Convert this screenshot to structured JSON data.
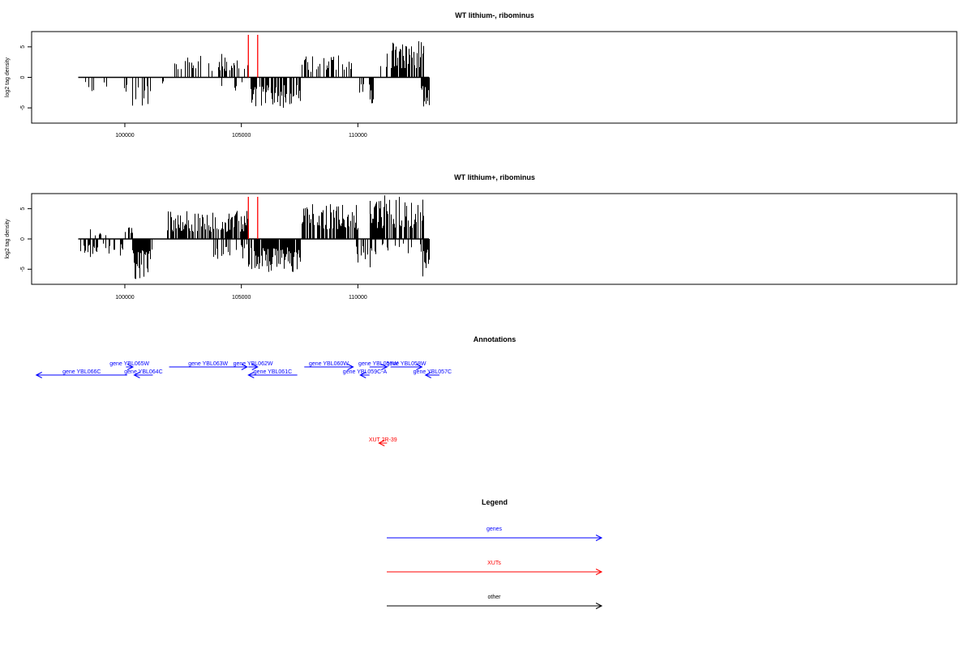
{
  "chart_data": [
    {
      "type": "bar",
      "title": "WT lithium-, ribominus",
      "ylabel": "log2 tag density",
      "xlim": [
        96000,
        135700
      ],
      "ylim": [
        -7.5,
        7.5
      ],
      "x_ticks": [
        100000,
        105000,
        110000
      ],
      "y_ticks": [
        -5,
        0,
        5
      ],
      "marker_lines_x": [
        105300,
        105700
      ],
      "marker_color": "#ff0000",
      "segments": [
        {
          "start": 98300,
          "end": 99200,
          "density": 0.25,
          "sign": -1,
          "amp": 3.0
        },
        {
          "start": 99950,
          "end": 100250,
          "density": 0.35,
          "sign": -1,
          "amp": 3.0
        },
        {
          "start": 100300,
          "end": 101150,
          "density": 0.45,
          "sign": -1,
          "amp": 5.0
        },
        {
          "start": 101600,
          "end": 101650,
          "density": 1.0,
          "sign": -1,
          "amp": 1.2
        },
        {
          "start": 101900,
          "end": 103900,
          "density": 0.35,
          "sign": 1,
          "amp": 3.6
        },
        {
          "start": 103900,
          "end": 105300,
          "density": 0.35,
          "sign": 1,
          "amp": 4.2
        },
        {
          "start": 104100,
          "end": 105200,
          "density": 0.15,
          "sign": -1,
          "amp": 2.5
        },
        {
          "start": 105350,
          "end": 107500,
          "density": 0.65,
          "sign": -1,
          "amp": 5.0
        },
        {
          "start": 107600,
          "end": 110000,
          "density": 0.4,
          "sign": 1,
          "amp": 3.6
        },
        {
          "start": 110050,
          "end": 110650,
          "density": 0.5,
          "sign": -1,
          "amp": 4.3
        },
        {
          "start": 110900,
          "end": 111400,
          "density": 0.25,
          "sign": 1,
          "amp": 4.5
        },
        {
          "start": 111400,
          "end": 112800,
          "density": 0.85,
          "sign": 1,
          "amp": 6.0
        },
        {
          "start": 112700,
          "end": 113050,
          "density": 0.9,
          "sign": -1,
          "amp": 5.5
        }
      ]
    },
    {
      "type": "bar",
      "title": "WT lithium+, ribominus",
      "ylabel": "log2 tag density",
      "xlim": [
        96000,
        135700
      ],
      "ylim": [
        -7.5,
        7.5
      ],
      "x_ticks": [
        100000,
        105000,
        110000
      ],
      "y_ticks": [
        -5,
        0,
        5
      ],
      "marker_lines_x": [
        105300,
        105700
      ],
      "marker_color": "#ff0000",
      "segments": [
        {
          "start": 98050,
          "end": 99900,
          "density": 0.45,
          "sign": -1,
          "amp": 3.0
        },
        {
          "start": 98200,
          "end": 99700,
          "density": 0.2,
          "sign": 1,
          "amp": 2.2
        },
        {
          "start": 99900,
          "end": 100300,
          "density": 0.45,
          "sign": 1,
          "amp": 2.5
        },
        {
          "start": 100300,
          "end": 101150,
          "density": 0.95,
          "sign": -1,
          "amp": 7.0
        },
        {
          "start": 101800,
          "end": 105300,
          "density": 0.75,
          "sign": 1,
          "amp": 4.7
        },
        {
          "start": 103800,
          "end": 105300,
          "density": 0.35,
          "sign": -1,
          "amp": 3.5
        },
        {
          "start": 105300,
          "end": 107500,
          "density": 0.9,
          "sign": -1,
          "amp": 5.5
        },
        {
          "start": 107600,
          "end": 110000,
          "density": 0.75,
          "sign": 1,
          "amp": 5.8
        },
        {
          "start": 109800,
          "end": 110500,
          "density": 0.5,
          "sign": -1,
          "amp": 4.8
        },
        {
          "start": 110500,
          "end": 112800,
          "density": 0.8,
          "sign": 1,
          "amp": 7.2
        },
        {
          "start": 110500,
          "end": 112800,
          "density": 0.3,
          "sign": -1,
          "amp": 3.0
        },
        {
          "start": 112700,
          "end": 113050,
          "density": 0.9,
          "sign": -1,
          "amp": 7.0
        }
      ]
    }
  ],
  "annotations": {
    "title": "Annotations",
    "items": [
      {
        "label": "gene YBL066C",
        "start": 96200,
        "end": 100100,
        "strand": "-",
        "row": 2,
        "type": "genes"
      },
      {
        "label": "gene YBL065W",
        "start": 100050,
        "end": 100350,
        "strand": "+",
        "row": 1,
        "type": "genes"
      },
      {
        "label": "gene YBL064C",
        "start": 100400,
        "end": 101200,
        "strand": "-",
        "row": 2,
        "type": "genes"
      },
      {
        "label": "gene YBL063W",
        "start": 101900,
        "end": 105250,
        "strand": "+",
        "row": 1,
        "type": "genes"
      },
      {
        "label": "gene YBL062W",
        "start": 105300,
        "end": 105700,
        "strand": "+",
        "row": 1,
        "type": "genes"
      },
      {
        "label": "gene YBL061C",
        "start": 105300,
        "end": 107400,
        "strand": "-",
        "row": 2,
        "type": "genes"
      },
      {
        "label": "gene YBL060W",
        "start": 107700,
        "end": 109800,
        "strand": "+",
        "row": 1,
        "type": "genes"
      },
      {
        "label": "gene YBL059C-A",
        "start": 110100,
        "end": 110500,
        "strand": "-",
        "row": 2,
        "type": "genes"
      },
      {
        "label": "gene YBL059W",
        "start": 110500,
        "end": 111250,
        "strand": "+",
        "row": 1,
        "type": "genes"
      },
      {
        "label": "gene YBL058W",
        "start": 111400,
        "end": 112750,
        "strand": "+",
        "row": 1,
        "type": "genes"
      },
      {
        "label": "gene YBL057C",
        "start": 112900,
        "end": 113500,
        "strand": "-",
        "row": 2,
        "type": "genes"
      },
      {
        "label": "XUT 2R-39",
        "start": 110900,
        "end": 111250,
        "strand": "-",
        "row": 3,
        "type": "XUTs"
      }
    ]
  },
  "legend": {
    "title": "Legend",
    "items": [
      {
        "label": "genes",
        "color": "#0000ff"
      },
      {
        "label": "XUTs",
        "color": "#ff0000"
      },
      {
        "label": "other",
        "color": "#000000"
      }
    ]
  },
  "colors": {
    "genes": "#0000ff",
    "XUTs": "#ff0000",
    "other": "#000000"
  }
}
